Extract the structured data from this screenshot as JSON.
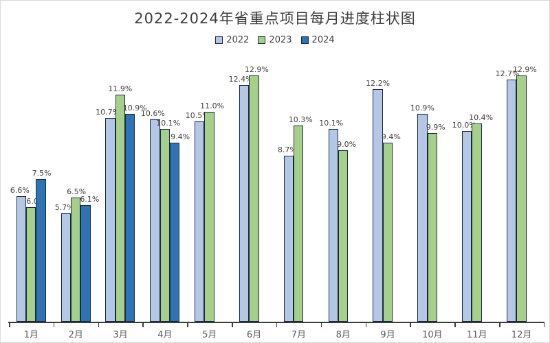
{
  "chart_data": {
    "type": "bar",
    "title": "2022-2024年省重点项目每月进度柱状图",
    "categories": [
      "1月",
      "2月",
      "3月",
      "4月",
      "5月",
      "6月",
      "7月",
      "8月",
      "9月",
      "10月",
      "11月",
      "12月"
    ],
    "series": [
      {
        "name": "2022",
        "color": "#B4C7E7",
        "values": [
          6.6,
          5.7,
          10.7,
          10.6,
          10.5,
          12.4,
          8.7,
          10.1,
          12.2,
          10.9,
          10.0,
          12.7
        ]
      },
      {
        "name": "2023",
        "color": "#A6CF8A",
        "values": [
          6.0,
          6.5,
          11.9,
          10.1,
          11.0,
          12.9,
          10.3,
          9.0,
          9.4,
          9.9,
          10.4,
          12.9
        ]
      },
      {
        "name": "2024",
        "color": "#2E74B5",
        "values": [
          7.5,
          6.1,
          10.9,
          9.4,
          null,
          null,
          null,
          null,
          null,
          null,
          null,
          null
        ]
      }
    ],
    "value_suffix": "%",
    "value_decimals": 1,
    "xlabel": "",
    "ylabel": "",
    "ylim": [
      0,
      14
    ],
    "grid": false,
    "legend_position": "top",
    "data_labels": "outside-end",
    "bar_border_color": "#1a2940",
    "axis_color": "#3b3b3b",
    "title_color": "#3d3d3d",
    "value_label_color": "#3f3f3f",
    "tick_label_color": "#595959",
    "background_color": "#ffffff"
  }
}
